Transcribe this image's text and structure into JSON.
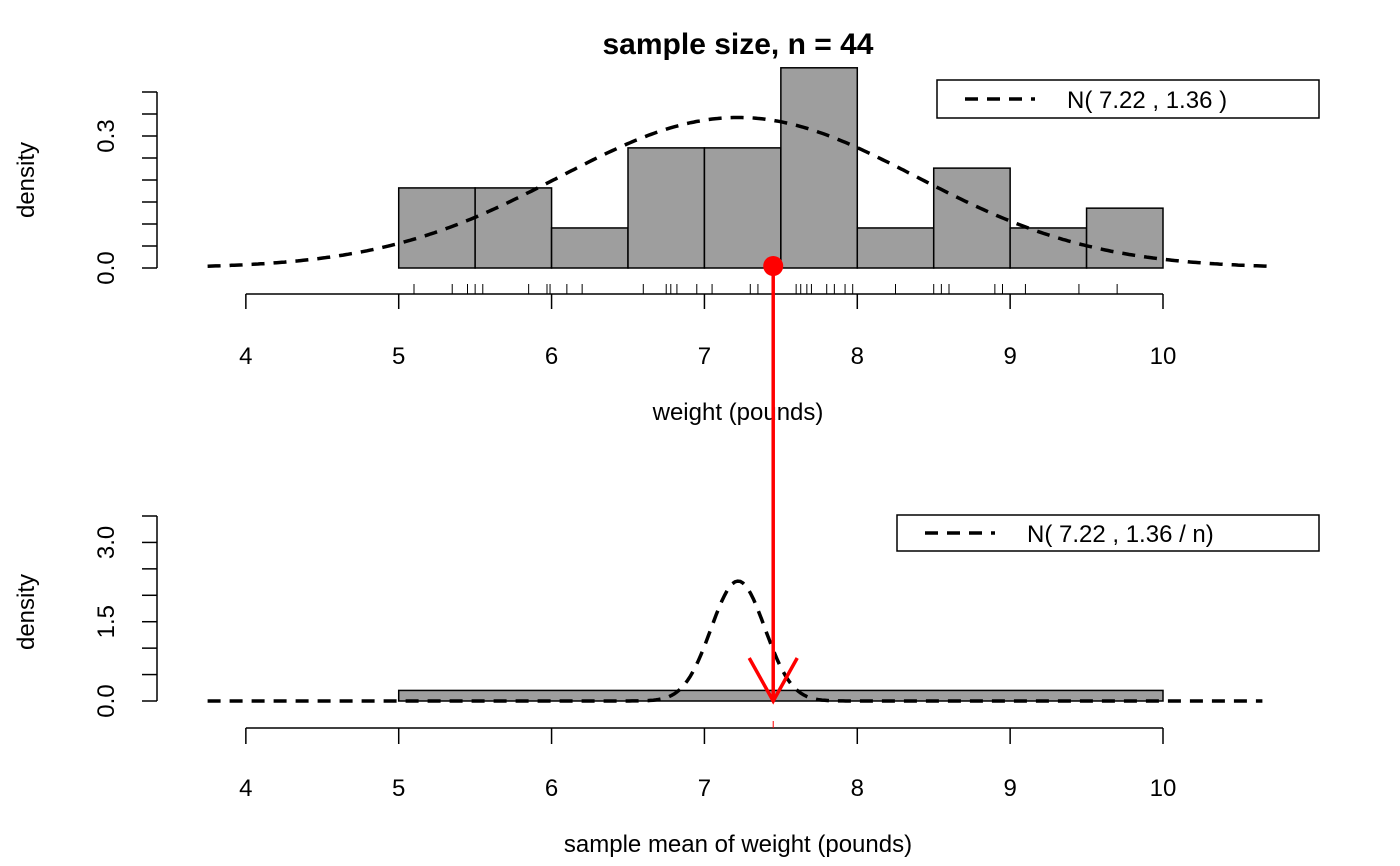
{
  "title": "sample size, n =  44",
  "chart_data": [
    {
      "type": "bar",
      "panel": "top",
      "xlabel": "weight (pounds)",
      "ylabel": "density",
      "xlim": [
        3.7,
        10.7
      ],
      "ylim": [
        0,
        0.4
      ],
      "x_ticks": [
        "4",
        "5",
        "6",
        "7",
        "8",
        "9",
        "10"
      ],
      "y_ticks": [
        "0.0",
        "0.3"
      ],
      "histogram": {
        "breaks": [
          5,
          5.5,
          6,
          6.5,
          7,
          7.5,
          8,
          8.5,
          9,
          9.5,
          10
        ],
        "density": [
          0.182,
          0.182,
          0.091,
          0.273,
          0.273,
          0.455,
          0.091,
          0.227,
          0.091,
          0.136
        ],
        "fill": "#9e9e9e"
      },
      "curve": {
        "name": "N( 7.22 , 1.36 )",
        "mean": 7.22,
        "variance": 1.36,
        "xrange": [
          3.75,
          10.7
        ],
        "style": "dashed"
      },
      "rug": [
        5.1,
        5.35,
        5.45,
        5.5,
        5.55,
        5.85,
        5.97,
        5.99,
        6.1,
        6.2,
        6.6,
        6.75,
        6.78,
        6.82,
        6.95,
        7.05,
        7.3,
        7.35,
        7.45,
        7.6,
        7.63,
        7.67,
        7.7,
        7.8,
        7.85,
        7.92,
        7.97,
        8.25,
        8.5,
        8.55,
        8.6,
        8.9,
        8.95,
        9.1,
        9.45,
        9.7
      ],
      "sample_mean": 7.45,
      "legend_position": "top-right"
    },
    {
      "type": "bar",
      "panel": "bottom",
      "xlabel": "sample mean of weight (pounds)",
      "ylabel": "density",
      "xlim": [
        3.7,
        10.7
      ],
      "ylim": [
        0,
        3.5
      ],
      "x_ticks": [
        "4",
        "5",
        "6",
        "7",
        "8",
        "9",
        "10"
      ],
      "y_ticks": [
        "0.0",
        "1.5",
        "3.0"
      ],
      "histogram": {
        "breaks": [
          5,
          10
        ],
        "density": [
          0.2
        ],
        "fill": "#9e9e9e"
      },
      "curve": {
        "name": "N( 7.22 , 1.36 / n)",
        "mean": 7.22,
        "variance": 0.0309,
        "xrange": [
          3.75,
          10.65
        ],
        "style": "dashed"
      },
      "rug": [
        7.45
      ],
      "sample_mean": 7.45,
      "legend_position": "top-right"
    }
  ],
  "colors": {
    "arrow": "#ff0000",
    "bars": "#9e9e9e",
    "curve": "#000000"
  }
}
